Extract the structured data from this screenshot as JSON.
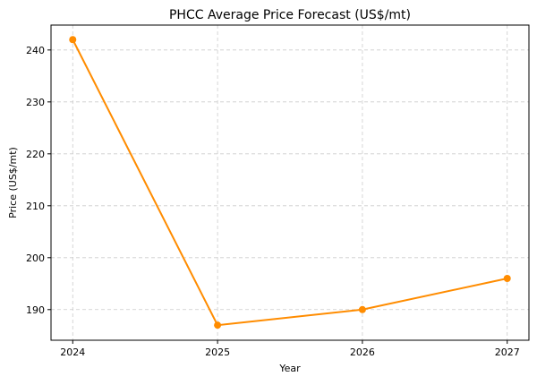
{
  "chart_data": {
    "type": "line",
    "title": "PHCC Average Price Forecast (US$/mt)",
    "xlabel": "Year",
    "ylabel": "Price (US$/mt)",
    "x": [
      2024,
      2025,
      2026,
      2027
    ],
    "series": [
      {
        "values": [
          242,
          187,
          190,
          196
        ],
        "color": "#ff8c00",
        "marker": "circle"
      }
    ],
    "xticks": [
      "2024",
      "2025",
      "2026",
      "2027"
    ],
    "yticks": [
      "190",
      "200",
      "210",
      "220",
      "230",
      "240"
    ],
    "xlim": [
      2023.85,
      2027.15
    ],
    "ylim": [
      184.1,
      244.8
    ],
    "grid": true,
    "grid_style": "dashed"
  }
}
